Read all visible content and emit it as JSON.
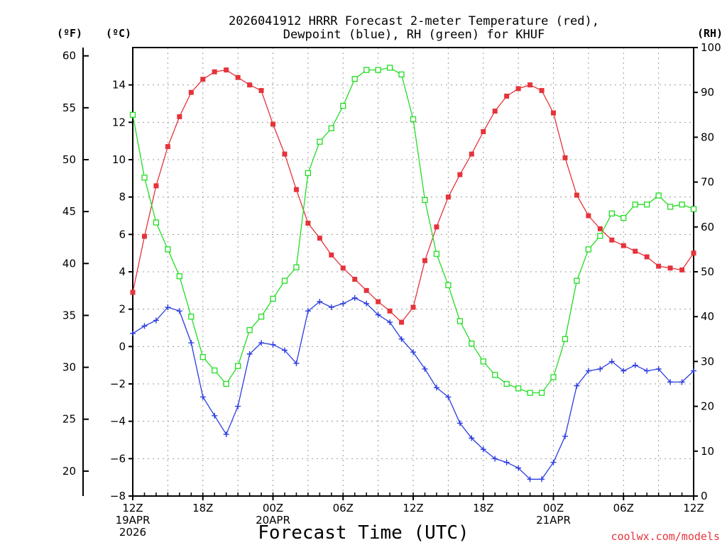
{
  "chart_data": {
    "type": "line",
    "title_lines": [
      "2026041912 HRRR Forecast 2-meter Temperature (red),",
      "Dewpoint (blue), RH (green) for KHUF"
    ],
    "xlabel": "Forecast Time (UTC)",
    "watermark": "coolwx.com/models",
    "unit_labels": {
      "fahrenheit": "(ºF)",
      "celsius": "(ºC)",
      "rh": "(RH)"
    },
    "hours_range": [
      0,
      48
    ],
    "x_ticks": [
      {
        "hour": 0,
        "lines": [
          "12Z",
          "19APR",
          "2026"
        ]
      },
      {
        "hour": 6,
        "lines": [
          "18Z"
        ]
      },
      {
        "hour": 12,
        "lines": [
          "00Z",
          "20APR"
        ]
      },
      {
        "hour": 18,
        "lines": [
          "06Z"
        ]
      },
      {
        "hour": 24,
        "lines": [
          "12Z"
        ]
      },
      {
        "hour": 30,
        "lines": [
          "18Z"
        ]
      },
      {
        "hour": 36,
        "lines": [
          "00Z",
          "21APR"
        ]
      },
      {
        "hour": 42,
        "lines": [
          "06Z"
        ]
      },
      {
        "hour": 48,
        "lines": [
          "12Z"
        ]
      }
    ],
    "celsius_axis": {
      "range": [
        -8,
        16
      ],
      "ticks": [
        -8,
        -6,
        -4,
        -2,
        0,
        2,
        4,
        6,
        8,
        10,
        12,
        14
      ]
    },
    "fahrenheit_axis": {
      "range": [
        17.6,
        60.8
      ],
      "ticks": [
        20,
        25,
        30,
        35,
        40,
        45,
        50,
        55,
        60
      ]
    },
    "rh_axis": {
      "range": [
        0,
        100
      ],
      "ticks": [
        0,
        10,
        20,
        30,
        40,
        50,
        60,
        70,
        80,
        90,
        100
      ]
    },
    "series": [
      {
        "key": "temperature",
        "unit": "C",
        "color": "#e5333b",
        "marker": "filled-square",
        "values": [
          2.9,
          5.9,
          8.6,
          10.7,
          12.3,
          13.6,
          14.3,
          14.7,
          14.8,
          14.4,
          14.0,
          13.7,
          11.9,
          10.3,
          8.4,
          6.6,
          5.8,
          4.9,
          4.2,
          3.6,
          3.0,
          2.4,
          1.9,
          1.3,
          2.1,
          4.6,
          6.4,
          8.0,
          9.2,
          10.3,
          11.5,
          12.6,
          13.4,
          13.8,
          14.0,
          13.7,
          12.5,
          10.1,
          8.1,
          7.0,
          6.3,
          5.7,
          5.4,
          5.1,
          4.8,
          4.3,
          4.2,
          4.1,
          5.0
        ]
      },
      {
        "key": "dewpoint",
        "unit": "C",
        "color": "#2a3ce0",
        "marker": "plus",
        "values": [
          0.7,
          1.1,
          1.4,
          2.1,
          1.9,
          0.2,
          -2.7,
          -3.7,
          -4.7,
          -3.2,
          -0.4,
          0.2,
          0.1,
          -0.2,
          -0.9,
          1.9,
          2.4,
          2.1,
          2.3,
          2.6,
          2.3,
          1.7,
          1.3,
          0.4,
          -0.3,
          -1.2,
          -2.2,
          -2.7,
          -4.1,
          -4.9,
          -5.5,
          -6.0,
          -6.2,
          -6.5,
          -7.1,
          -7.1,
          -6.2,
          -4.8,
          -2.1,
          -1.3,
          -1.2,
          -0.8,
          -1.3,
          -1.0,
          -1.3,
          -1.2,
          -1.9,
          -1.9,
          -1.3
        ]
      },
      {
        "key": "rh",
        "unit": "%",
        "color": "#22dd22",
        "marker": "open-square",
        "values": [
          85,
          71,
          61,
          55,
          49,
          40,
          31,
          28,
          25,
          29,
          37,
          40,
          44,
          48,
          51,
          72,
          79,
          82,
          87,
          93,
          95,
          95,
          95.5,
          94,
          84,
          66,
          54,
          47,
          39,
          34,
          30,
          27,
          25,
          24,
          23,
          23,
          26.5,
          35,
          48,
          55,
          58,
          63,
          62,
          65,
          65,
          67,
          64.5,
          65,
          64
        ]
      }
    ]
  }
}
